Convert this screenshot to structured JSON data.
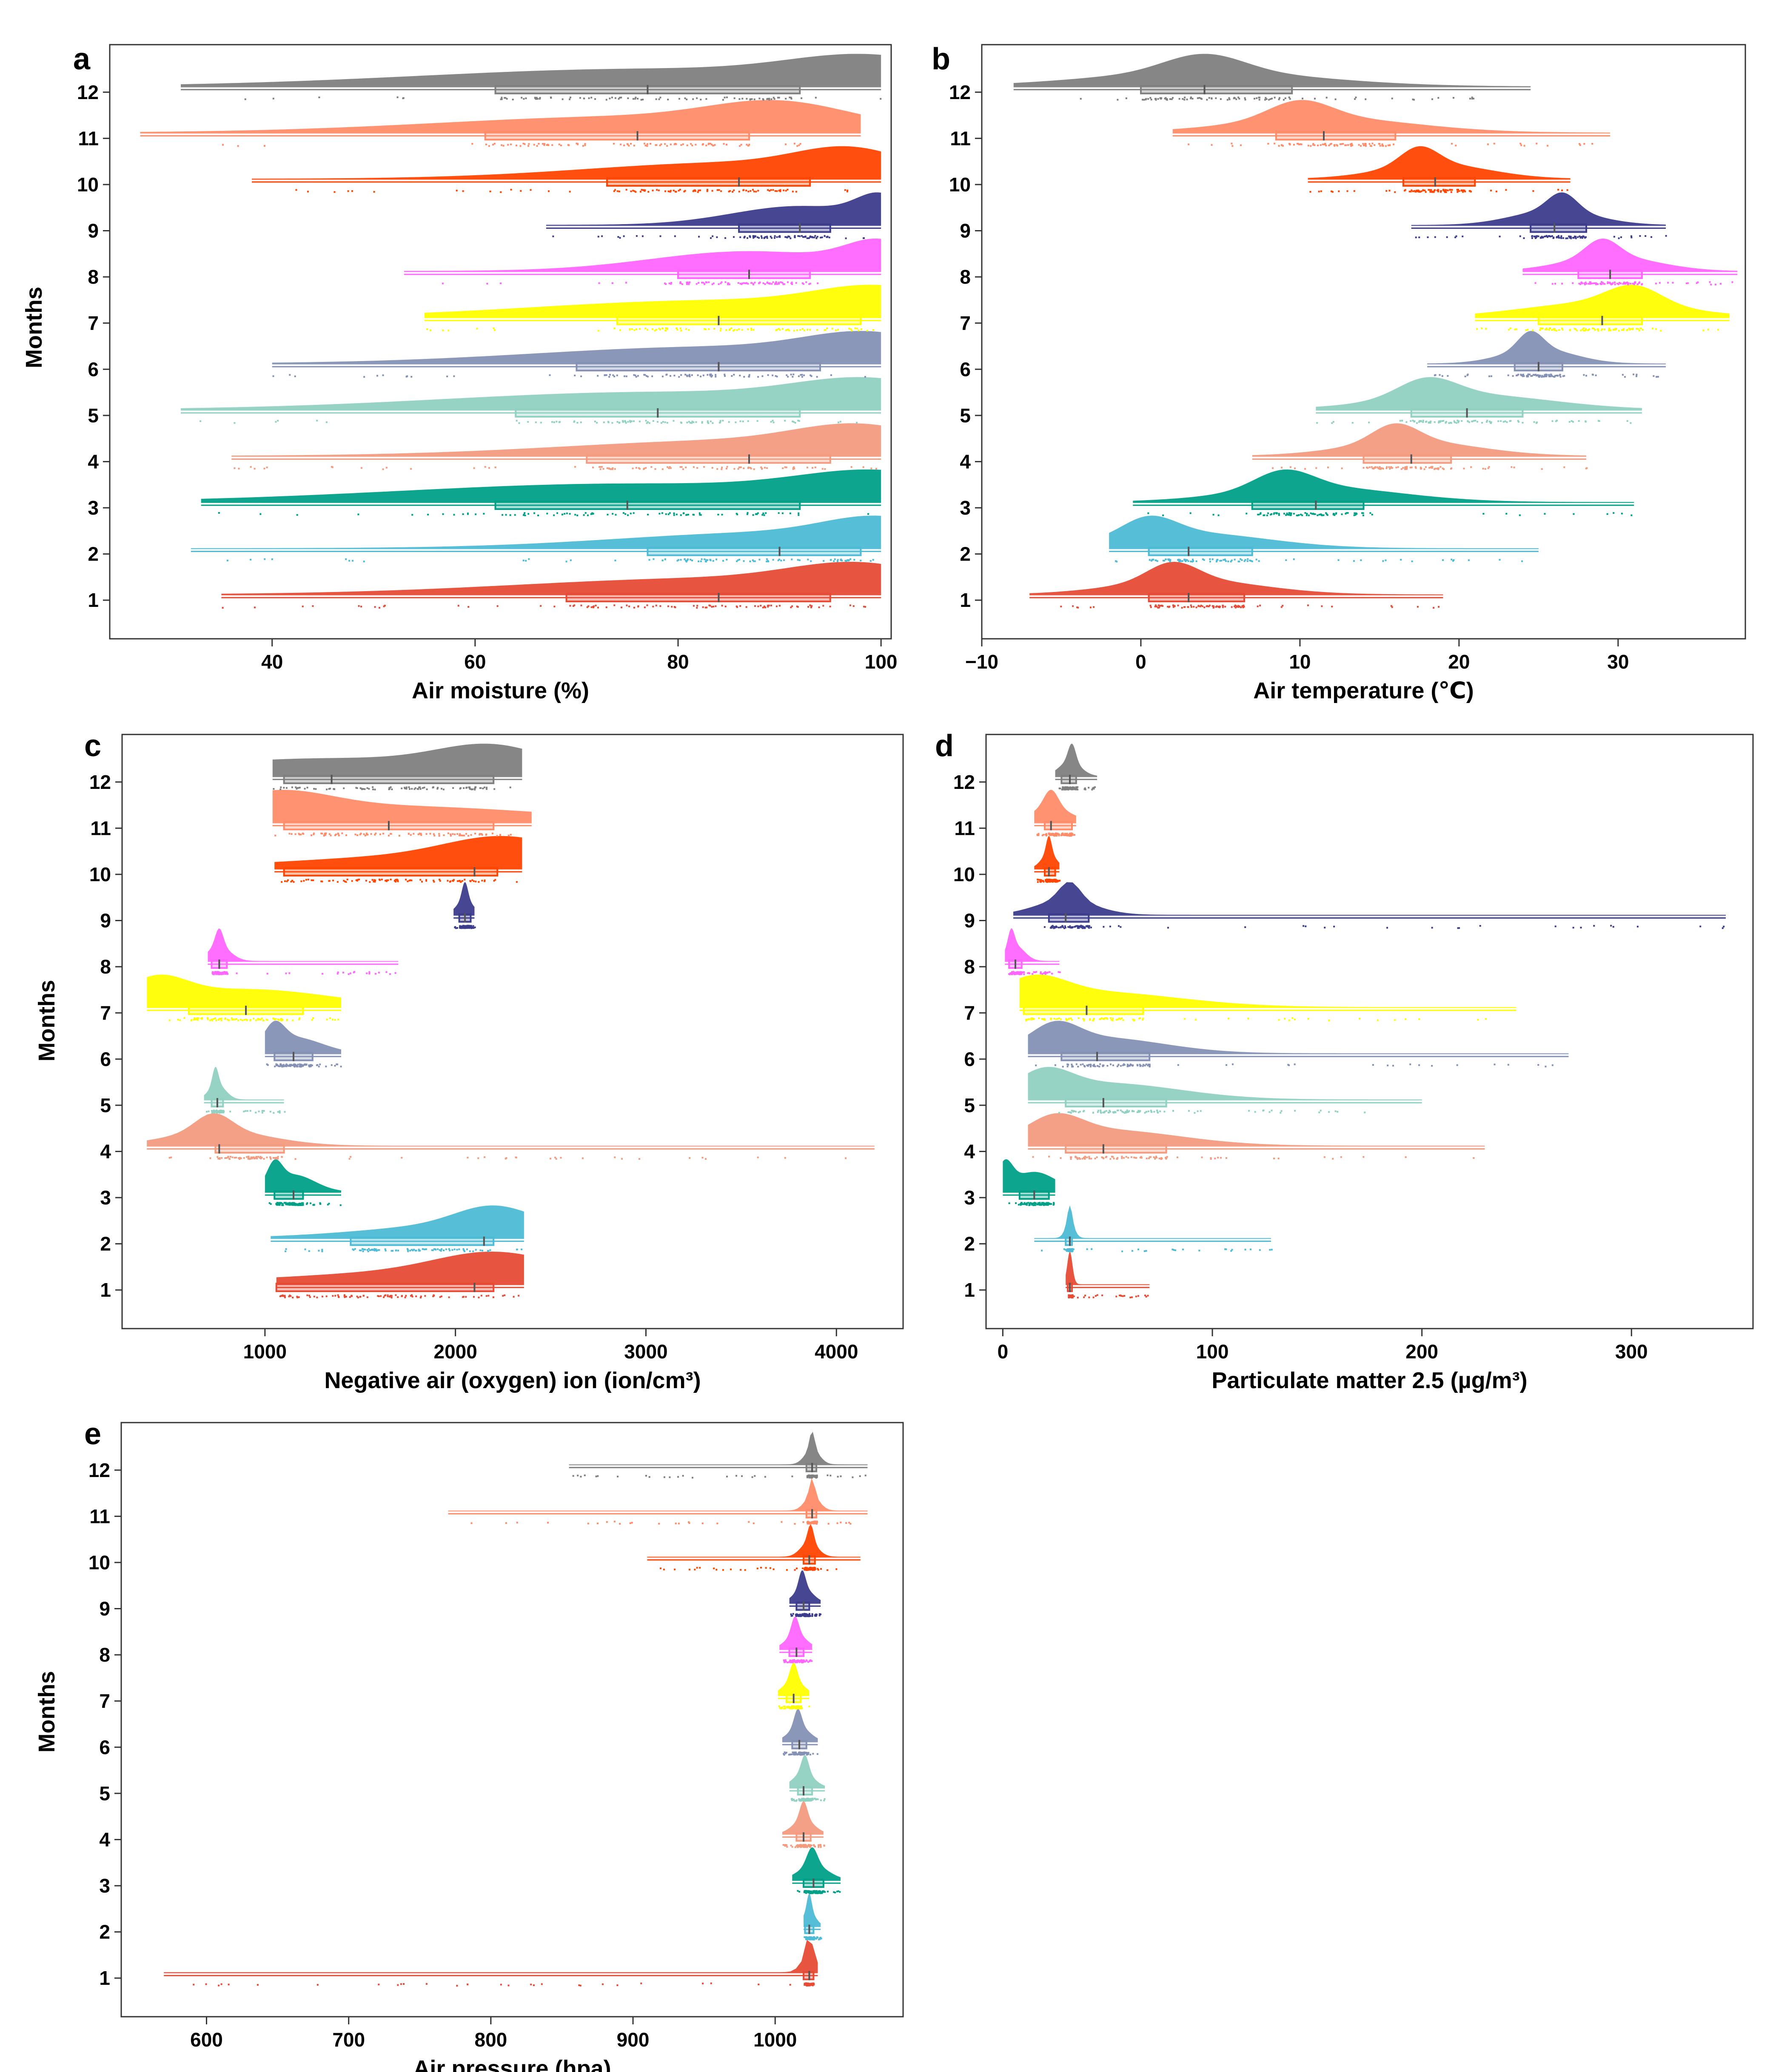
{
  "figure": {
    "month_labels": [
      "1",
      "2",
      "3",
      "4",
      "5",
      "6",
      "7",
      "8",
      "9",
      "10",
      "11",
      "12"
    ],
    "month_colors": [
      "#e64b35",
      "#4dbbd5",
      "#00a087",
      "#f39b7f",
      "#91d1c2",
      "#8491b4",
      "#ffff00",
      "#ff66ff",
      "#3c3c8c",
      "#ff4500",
      "#ff8c69",
      "#7f7f7f"
    ]
  },
  "chart_data": [
    {
      "panel": "a",
      "type": "raincloud",
      "xlabel": "Air moisture (%)",
      "ylabel": "Months",
      "xlim": [
        24,
        101
      ],
      "xticks": [
        40,
        60,
        80,
        100
      ],
      "xtick_labels": [
        "40",
        "60",
        "80",
        "100"
      ],
      "categories": [
        "1",
        "2",
        "3",
        "4",
        "5",
        "6",
        "7",
        "8",
        "9",
        "10",
        "11",
        "12"
      ],
      "series": [
        {
          "month": "1",
          "min": 35,
          "q1": 69,
          "median": 84,
          "q3": 95,
          "max": 100,
          "peak": 98
        },
        {
          "month": "2",
          "min": 32,
          "q1": 77,
          "median": 90,
          "q3": 98,
          "max": 100,
          "peak": 100
        },
        {
          "month": "3",
          "min": 33,
          "q1": 62,
          "median": 75,
          "q3": 92,
          "max": 100,
          "peak": 100
        },
        {
          "month": "4",
          "min": 36,
          "q1": 71,
          "median": 87,
          "q3": 95,
          "max": 100,
          "peak": 98
        },
        {
          "month": "5",
          "min": 31,
          "q1": 64,
          "median": 78,
          "q3": 92,
          "max": 100,
          "peak": 99
        },
        {
          "month": "6",
          "min": 40,
          "q1": 70,
          "median": 84,
          "q3": 94,
          "max": 100,
          "peak": 99
        },
        {
          "month": "7",
          "min": 55,
          "q1": 74,
          "median": 84,
          "q3": 98,
          "max": 100,
          "peak": 100
        },
        {
          "month": "8",
          "min": 53,
          "q1": 80,
          "median": 87,
          "q3": 93,
          "max": 100,
          "peak": 100
        },
        {
          "month": "9",
          "min": 67,
          "q1": 86,
          "median": 92,
          "q3": 95,
          "max": 100,
          "peak": 100
        },
        {
          "month": "10",
          "min": 38,
          "q1": 73,
          "median": 86,
          "q3": 93,
          "max": 100,
          "peak": 97
        },
        {
          "month": "11",
          "min": 27,
          "q1": 61,
          "median": 76,
          "q3": 87,
          "max": 98,
          "peak": 90
        },
        {
          "month": "12",
          "min": 31,
          "q1": 62,
          "median": 77,
          "q3": 92,
          "max": 100,
          "peak": 99
        }
      ]
    },
    {
      "panel": "b",
      "type": "raincloud",
      "xlabel": "Air temperature (℃)",
      "ylabel": "",
      "xlim": [
        -10,
        38
      ],
      "xticks": [
        -10,
        0,
        10,
        20,
        30
      ],
      "xtick_labels": [
        "−10",
        "0",
        "10",
        "20",
        "30"
      ],
      "categories": [
        "1",
        "2",
        "3",
        "4",
        "5",
        "6",
        "7",
        "8",
        "9",
        "10",
        "11",
        "12"
      ],
      "series": [
        {
          "month": "1",
          "min": -7,
          "q1": 0.5,
          "median": 3,
          "q3": 6.5,
          "max": 19,
          "peak": 2
        },
        {
          "month": "2",
          "min": -2,
          "q1": 0.5,
          "median": 3,
          "q3": 7,
          "max": 25,
          "peak": 0.5
        },
        {
          "month": "3",
          "min": -0.5,
          "q1": 7,
          "median": 11,
          "q3": 14,
          "max": 31,
          "peak": 9
        },
        {
          "month": "4",
          "min": 7,
          "q1": 14,
          "median": 17,
          "q3": 19.5,
          "max": 28,
          "peak": 16
        },
        {
          "month": "5",
          "min": 11,
          "q1": 17,
          "median": 20.5,
          "q3": 24,
          "max": 31.5,
          "peak": 18
        },
        {
          "month": "6",
          "min": 18,
          "q1": 23.5,
          "median": 25,
          "q3": 26.5,
          "max": 33,
          "peak": 24.5
        },
        {
          "month": "7",
          "min": 21,
          "q1": 25,
          "median": 29,
          "q3": 31.5,
          "max": 37,
          "peak": 31
        },
        {
          "month": "8",
          "min": 24,
          "q1": 27.5,
          "median": 29.5,
          "q3": 31.5,
          "max": 37.5,
          "peak": 29
        },
        {
          "month": "9",
          "min": 17,
          "q1": 24.5,
          "median": 26,
          "q3": 28,
          "max": 33,
          "peak": 26.5
        },
        {
          "month": "10",
          "min": 10.5,
          "q1": 16.5,
          "median": 18.5,
          "q3": 21,
          "max": 27,
          "peak": 17.5
        },
        {
          "month": "11",
          "min": 2,
          "q1": 8.5,
          "median": 11.5,
          "q3": 16,
          "max": 29.5,
          "peak": 10
        },
        {
          "month": "12",
          "min": -8,
          "q1": 0,
          "median": 4,
          "q3": 9.5,
          "max": 24.5,
          "peak": 4
        }
      ]
    },
    {
      "panel": "c",
      "type": "raincloud",
      "xlabel": "Negative air (oxygen) ion (ion/cm³)",
      "ylabel": "Months",
      "xlim": [
        250,
        4350
      ],
      "xticks": [
        1000,
        2000,
        3000,
        4000
      ],
      "xtick_labels": [
        "1000",
        "2000",
        "3000",
        "4000"
      ],
      "categories": [
        "1",
        "2",
        "3",
        "4",
        "5",
        "6",
        "7",
        "8",
        "9",
        "10",
        "11",
        "12"
      ],
      "series": [
        {
          "month": "1",
          "min": 1060,
          "q1": 1060,
          "median": 2100,
          "q3": 2200,
          "max": 2360,
          "peak": 2200
        },
        {
          "month": "2",
          "min": 1030,
          "q1": 1450,
          "median": 2150,
          "q3": 2200,
          "max": 2360,
          "peak": 2200
        },
        {
          "month": "3",
          "min": 1000,
          "q1": 1050,
          "median": 1150,
          "q3": 1200,
          "max": 1400,
          "peak": 1050
        },
        {
          "month": "4",
          "min": 380,
          "q1": 740,
          "median": 760,
          "q3": 1100,
          "max": 4200,
          "peak": 730
        },
        {
          "month": "5",
          "min": 680,
          "q1": 720,
          "median": 750,
          "q3": 780,
          "max": 1100,
          "peak": 740
        },
        {
          "month": "6",
          "min": 1000,
          "q1": 1050,
          "median": 1150,
          "q3": 1250,
          "max": 1400,
          "peak": 1050
        },
        {
          "month": "7",
          "min": 380,
          "q1": 600,
          "median": 900,
          "q3": 1200,
          "max": 1400,
          "peak": 430
        },
        {
          "month": "8",
          "min": 700,
          "q1": 720,
          "median": 760,
          "q3": 800,
          "max": 1700,
          "peak": 760
        },
        {
          "month": "9",
          "min": 1990,
          "q1": 2020,
          "median": 2050,
          "q3": 2080,
          "max": 2100,
          "peak": 2050
        },
        {
          "month": "10",
          "min": 1050,
          "q1": 1100,
          "median": 2100,
          "q3": 2220,
          "max": 2350,
          "peak": 2250
        },
        {
          "month": "11",
          "min": 1040,
          "q1": 1100,
          "median": 1650,
          "q3": 2200,
          "max": 2400,
          "peak": 1050
        },
        {
          "month": "12",
          "min": 1040,
          "q1": 1100,
          "median": 1350,
          "q3": 2200,
          "max": 2350,
          "peak": 2200
        }
      ]
    },
    {
      "panel": "d",
      "type": "raincloud",
      "xlabel": "Particulate matter 2.5 (µg/m³)",
      "ylabel": "",
      "xlim": [
        -8,
        358
      ],
      "xticks": [
        0,
        100,
        200,
        300
      ],
      "xtick_labels": [
        "0",
        "100",
        "200",
        "300"
      ],
      "categories": [
        "1",
        "2",
        "3",
        "4",
        "5",
        "6",
        "7",
        "8",
        "9",
        "10",
        "11",
        "12"
      ],
      "series": [
        {
          "month": "1",
          "min": 30,
          "q1": 31,
          "median": 32,
          "q3": 33,
          "max": 70,
          "peak": 32
        },
        {
          "month": "2",
          "min": 15,
          "q1": 30,
          "median": 32,
          "q3": 33,
          "max": 128,
          "peak": 32
        },
        {
          "month": "3",
          "min": 0,
          "q1": 8,
          "median": 15,
          "q3": 22,
          "max": 25,
          "peak": 1
        },
        {
          "month": "4",
          "min": 12,
          "q1": 30,
          "median": 48,
          "q3": 78,
          "max": 230,
          "peak": 25
        },
        {
          "month": "5",
          "min": 12,
          "q1": 30,
          "median": 48,
          "q3": 78,
          "max": 200,
          "peak": 20
        },
        {
          "month": "6",
          "min": 12,
          "q1": 28,
          "median": 45,
          "q3": 70,
          "max": 270,
          "peak": 25
        },
        {
          "month": "7",
          "min": 8,
          "q1": 10,
          "median": 40,
          "q3": 67,
          "max": 245,
          "peak": 15
        },
        {
          "month": "8",
          "min": 1,
          "q1": 3,
          "median": 6,
          "q3": 9,
          "max": 27,
          "peak": 4
        },
        {
          "month": "9",
          "min": 5,
          "q1": 22,
          "median": 30,
          "q3": 41,
          "max": 345,
          "peak": 32
        },
        {
          "month": "10",
          "min": 15,
          "q1": 20,
          "median": 22,
          "q3": 25,
          "max": 27,
          "peak": 22
        },
        {
          "month": "11",
          "min": 15,
          "q1": 20,
          "median": 23,
          "q3": 33,
          "max": 35,
          "peak": 23
        },
        {
          "month": "12",
          "min": 25,
          "q1": 28,
          "median": 32,
          "q3": 35,
          "max": 45,
          "peak": 33
        }
      ]
    },
    {
      "panel": "e",
      "type": "raincloud",
      "xlabel": "Air pressure (hpa)",
      "ylabel": "Months",
      "xlim": [
        540,
        1090
      ],
      "xticks": [
        600,
        700,
        800,
        900,
        1000
      ],
      "xtick_labels": [
        "600",
        "700",
        "800",
        "900",
        "1000"
      ],
      "categories": [
        "1",
        "2",
        "3",
        "4",
        "5",
        "6",
        "7",
        "8",
        "9",
        "10",
        "11",
        "12"
      ],
      "series": [
        {
          "month": "1",
          "min": 570,
          "q1": 1020,
          "median": 1024,
          "q3": 1027,
          "max": 1030,
          "peak": 1024
        },
        {
          "month": "2",
          "min": 1020,
          "q1": 1021,
          "median": 1024,
          "q3": 1027,
          "max": 1032,
          "peak": 1024
        },
        {
          "month": "3",
          "min": 1012,
          "q1": 1020,
          "median": 1027,
          "q3": 1034,
          "max": 1046,
          "peak": 1026
        },
        {
          "month": "4",
          "min": 1005,
          "q1": 1015,
          "median": 1020,
          "q3": 1025,
          "max": 1034,
          "peak": 1020
        },
        {
          "month": "5",
          "min": 1010,
          "q1": 1016,
          "median": 1020,
          "q3": 1026,
          "max": 1035,
          "peak": 1021
        },
        {
          "month": "6",
          "min": 1005,
          "q1": 1012,
          "median": 1017,
          "q3": 1022,
          "max": 1030,
          "peak": 1016
        },
        {
          "month": "7",
          "min": 1002,
          "q1": 1008,
          "median": 1013,
          "q3": 1018,
          "max": 1024,
          "peak": 1013
        },
        {
          "month": "8",
          "min": 1003,
          "q1": 1010,
          "median": 1015,
          "q3": 1020,
          "max": 1026,
          "peak": 1014
        },
        {
          "month": "9",
          "min": 1010,
          "q1": 1015,
          "median": 1020,
          "q3": 1024,
          "max": 1032,
          "peak": 1019
        },
        {
          "month": "10",
          "min": 910,
          "q1": 1020,
          "median": 1024,
          "q3": 1028,
          "max": 1060,
          "peak": 1025
        },
        {
          "month": "11",
          "min": 770,
          "q1": 1022,
          "median": 1026,
          "q3": 1029,
          "max": 1065,
          "peak": 1026
        },
        {
          "month": "12",
          "min": 855,
          "q1": 1022,
          "median": 1026,
          "q3": 1029,
          "max": 1065,
          "peak": 1026
        }
      ]
    }
  ]
}
